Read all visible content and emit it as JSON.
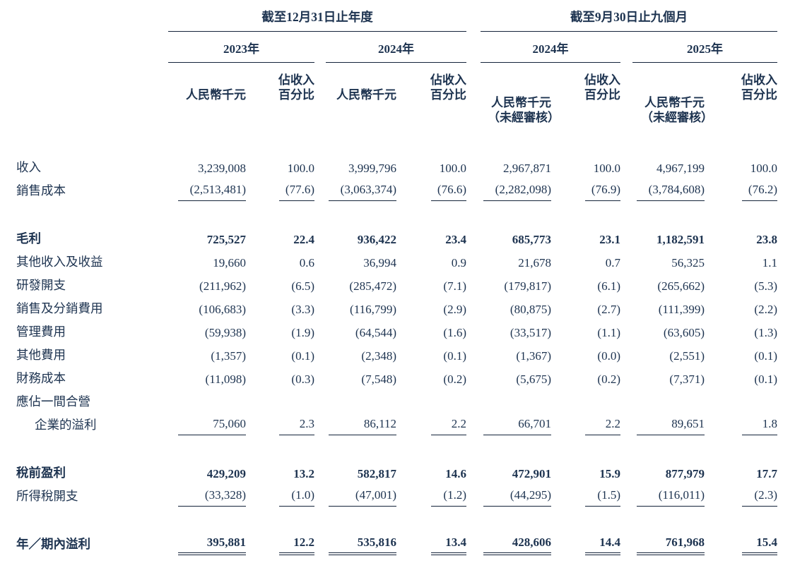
{
  "table": {
    "group_headers": [
      "截至12月31日止年度",
      "截至9月30日止九個月"
    ],
    "year_headers": [
      "2023年",
      "2024年",
      "2024年",
      "2025年"
    ],
    "subheaders": {
      "rmb": "人民幣千元",
      "pct_line1": "佔收入",
      "pct_line2": "百分比",
      "unaudited": "（未經審核）"
    },
    "rows": [
      {
        "label": "收入",
        "values": [
          "3,239,008",
          "100.0",
          "3,999,796",
          "100.0",
          "2,967,871",
          "100.0",
          "4,967,199",
          "100.0"
        ]
      },
      {
        "label": "銷售成本",
        "underline": "single",
        "values": [
          "(2,513,481)",
          "(77.6)",
          "(3,063,374)",
          "(76.6)",
          "(2,282,098)",
          "(76.9)",
          "(3,784,608)",
          "(76.2)"
        ]
      },
      {
        "spacer": true
      },
      {
        "label": "毛利",
        "bold": true,
        "values": [
          "725,527",
          "22.4",
          "936,422",
          "23.4",
          "685,773",
          "23.1",
          "1,182,591",
          "23.8"
        ]
      },
      {
        "label": "其他收入及收益",
        "values": [
          "19,660",
          "0.6",
          "36,994",
          "0.9",
          "21,678",
          "0.7",
          "56,325",
          "1.1"
        ]
      },
      {
        "label": "研發開支",
        "values": [
          "(211,962)",
          "(6.5)",
          "(285,472)",
          "(7.1)",
          "(179,817)",
          "(6.1)",
          "(265,662)",
          "(5.3)"
        ]
      },
      {
        "label": "銷售及分銷費用",
        "values": [
          "(106,683)",
          "(3.3)",
          "(116,799)",
          "(2.9)",
          "(80,875)",
          "(2.7)",
          "(111,399)",
          "(2.2)"
        ]
      },
      {
        "label": "管理費用",
        "values": [
          "(59,938)",
          "(1.9)",
          "(64,544)",
          "(1.6)",
          "(33,517)",
          "(1.1)",
          "(63,605)",
          "(1.3)"
        ]
      },
      {
        "label": "其他費用",
        "values": [
          "(1,357)",
          "(0.1)",
          "(2,348)",
          "(0.1)",
          "(1,367)",
          "(0.0)",
          "(2,551)",
          "(0.1)"
        ]
      },
      {
        "label": "財務成本",
        "values": [
          "(11,098)",
          "(0.3)",
          "(7,548)",
          "(0.2)",
          "(5,675)",
          "(0.2)",
          "(7,371)",
          "(0.1)"
        ]
      },
      {
        "label": "應佔一間合營"
      },
      {
        "label": "企業的溢利",
        "indent": true,
        "underline": "single",
        "values": [
          "75,060",
          "2.3",
          "86,112",
          "2.2",
          "66,701",
          "2.2",
          "89,651",
          "1.8"
        ]
      },
      {
        "spacer": true
      },
      {
        "label": "稅前盈利",
        "bold": true,
        "values": [
          "429,209",
          "13.2",
          "582,817",
          "14.6",
          "472,901",
          "15.9",
          "877,979",
          "17.7"
        ]
      },
      {
        "label": "所得稅開支",
        "underline": "single",
        "values": [
          "(33,328)",
          "(1.0)",
          "(47,001)",
          "(1.2)",
          "(44,295)",
          "(1.5)",
          "(116,011)",
          "(2.3)"
        ]
      },
      {
        "spacer": true
      },
      {
        "label": "年／期內溢利",
        "bold": true,
        "underline": "double",
        "values": [
          "395,881",
          "12.2",
          "535,816",
          "13.4",
          "428,606",
          "14.4",
          "761,968",
          "15.4"
        ]
      }
    ]
  }
}
